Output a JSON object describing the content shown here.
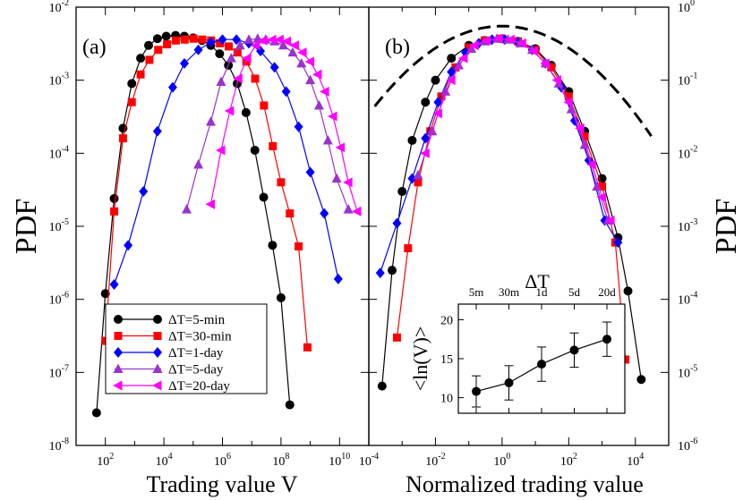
{
  "figure": {
    "ylabel_left": "PDF",
    "ylabel_right": "PDF"
  },
  "chart_data": [
    {
      "type": "line",
      "panel_label": "(a)",
      "xlabel": "Trading value V",
      "ylabel": "PDF",
      "xscale": "log",
      "yscale": "log",
      "xlim": [
        10,
        100000000000
      ],
      "ylim": [
        1e-08,
        0.01
      ],
      "x_ticks": [
        {
          "b": "10",
          "e": "2",
          "v": 100
        },
        {
          "b": "10",
          "e": "4",
          "v": 10000
        },
        {
          "b": "10",
          "e": "6",
          "v": 1000000
        },
        {
          "b": "10",
          "e": "8",
          "v": 100000000
        },
        {
          "b": "10",
          "e": "10",
          "v": 10000000000
        }
      ],
      "y_ticks": [
        {
          "b": "10",
          "e": "-8",
          "v": 1e-08
        },
        {
          "b": "10",
          "e": "-7",
          "v": 1e-07
        },
        {
          "b": "10",
          "e": "-6",
          "v": 1e-06
        },
        {
          "b": "10",
          "e": "-5",
          "v": 1e-05
        },
        {
          "b": "10",
          "e": "-4",
          "v": 0.0001
        },
        {
          "b": "10",
          "e": "-3",
          "v": 0.001
        },
        {
          "b": "10",
          "e": "-2",
          "v": 0.01
        }
      ],
      "legend_position": "bottom-left",
      "series": [
        {
          "name": "ΔT=5-min",
          "color": "#000000",
          "marker": "circle",
          "points": [
            [
              50,
              2.8e-08
            ],
            [
              100,
              1.2e-06
            ],
            [
              200,
              2.4e-05
            ],
            [
              400,
              0.00022
            ],
            [
              800,
              0.0009
            ],
            [
              1600,
              0.002
            ],
            [
              3000,
              0.003
            ],
            [
              6000,
              0.0037
            ],
            [
              12000,
              0.004
            ],
            [
              25000,
              0.0041
            ],
            [
              50000,
              0.004
            ],
            [
              100000,
              0.0038
            ],
            [
              200000,
              0.0035
            ],
            [
              400000,
              0.003
            ],
            [
              800000,
              0.0023
            ],
            [
              1600000,
              0.0016
            ],
            [
              3200000,
              0.0009
            ],
            [
              6400000,
              0.00036
            ],
            [
              12800000,
              0.00011
            ],
            [
              25600000,
              2.5e-05
            ],
            [
              51200000,
              5.5e-06
            ],
            [
              100000000,
              1.05e-06
            ],
            [
              200000000,
              3.6e-08
            ]
          ]
        },
        {
          "name": "ΔT=30-min",
          "color": "#ff0000",
          "marker": "square",
          "points": [
            [
              100,
              2.7e-07
            ],
            [
              200,
              1.6e-05
            ],
            [
              400,
              0.00016
            ],
            [
              800,
              0.0005
            ],
            [
              1600,
              0.0012
            ],
            [
              3200,
              0.0019
            ],
            [
              6400,
              0.0026
            ],
            [
              12800,
              0.0031
            ],
            [
              25600,
              0.0035
            ],
            [
              51200,
              0.0036
            ],
            [
              102400,
              0.0037
            ],
            [
              204800,
              0.0036
            ],
            [
              409600,
              0.0035
            ],
            [
              819200,
              0.0032
            ],
            [
              1638400,
              0.0029
            ],
            [
              3276800,
              0.0024
            ],
            [
              6553600,
              0.0018
            ],
            [
              13107200,
              0.00105
            ],
            [
              26214400,
              0.00045
            ],
            [
              52428800,
              0.000125
            ],
            [
              100000000,
              4e-05
            ],
            [
              200000000,
              1.5e-05
            ],
            [
              400000000,
              5.3e-06
            ],
            [
              800000000,
              2.2e-07
            ]
          ]
        },
        {
          "name": "ΔT=1-day",
          "color": "#0000ff",
          "marker": "diamond",
          "points": [
            [
              200,
              1.6e-06
            ],
            [
              600,
              5.5e-06
            ],
            [
              2000,
              3e-05
            ],
            [
              6000,
              0.0002
            ],
            [
              20000,
              0.0008
            ],
            [
              50000,
              0.0017
            ],
            [
              150000,
              0.0026
            ],
            [
              400000,
              0.0033
            ],
            [
              1000000,
              0.0036
            ],
            [
              3000000,
              0.0036
            ],
            [
              8000000,
              0.0032
            ],
            [
              20000000,
              0.0025
            ],
            [
              60000000,
              0.0015
            ],
            [
              150000000,
              0.0007
            ],
            [
              400000000,
              0.00023
            ],
            [
              1000000000,
              5.5e-05
            ],
            [
              3000000000,
              1.5e-05
            ],
            [
              9000000000,
              1.9e-06
            ]
          ]
        },
        {
          "name": "ΔT=5-day",
          "color": "#9933cc",
          "marker": "triangle-up",
          "points": [
            [
              60000,
              1.7e-05
            ],
            [
              150000,
              7e-05
            ],
            [
              400000,
              0.00027
            ],
            [
              900000,
              0.00095
            ],
            [
              2000000,
              0.002
            ],
            [
              4000000,
              0.003
            ],
            [
              8000000,
              0.0036
            ],
            [
              16000000,
              0.0037
            ],
            [
              30000000,
              0.0036
            ],
            [
              60000000,
              0.0034
            ],
            [
              120000000,
              0.003
            ],
            [
              250000000,
              0.0024
            ],
            [
              500000000,
              0.0017
            ],
            [
              1000000000,
              0.001
            ],
            [
              2000000000,
              0.00045
            ],
            [
              4000000000,
              0.00015
            ],
            [
              8000000000,
              4.5e-05
            ],
            [
              20000000000,
              1.7e-05
            ]
          ]
        },
        {
          "name": "ΔT=20-day",
          "color": "#ff00ff",
          "marker": "triangle-left",
          "points": [
            [
              400000,
              2e-05
            ],
            [
              900000,
              0.00011
            ],
            [
              1800000,
              0.00038
            ],
            [
              3500000,
              0.00105
            ],
            [
              7000000,
              0.002
            ],
            [
              14000000,
              0.003
            ],
            [
              25000000,
              0.0035
            ],
            [
              50000000,
              0.0036
            ],
            [
              90000000,
              0.0036
            ],
            [
              160000000,
              0.0034
            ],
            [
              300000000,
              0.003
            ],
            [
              550000000,
              0.0024
            ],
            [
              1000000000,
              0.0018
            ],
            [
              1800000000,
              0.0012
            ],
            [
              3200000000,
              0.0007
            ],
            [
              6000000000,
              0.00032
            ],
            [
              11000000000,
              0.00012
            ],
            [
              20000000000,
              4e-05
            ],
            [
              40000000000,
              1.6e-05
            ]
          ]
        }
      ]
    },
    {
      "type": "line",
      "panel_label": "(b)",
      "xlabel": "Normalized trading value",
      "ylabel": "PDF",
      "xscale": "log",
      "yscale": "log",
      "xlim": [
        0.0001,
        100000
      ],
      "ylim": [
        1e-06,
        1
      ],
      "x_ticks": [
        {
          "b": "10",
          "e": "-4",
          "v": 0.0001
        },
        {
          "b": "10",
          "e": "-2",
          "v": 0.01
        },
        {
          "b": "10",
          "e": "0",
          "v": 1
        },
        {
          "b": "10",
          "e": "2",
          "v": 100
        },
        {
          "b": "10",
          "e": "4",
          "v": 10000
        }
      ],
      "y_ticks": [
        {
          "b": "10",
          "e": "-6",
          "v": 1e-06
        },
        {
          "b": "10",
          "e": "-5",
          "v": 1e-05
        },
        {
          "b": "10",
          "e": "-4",
          "v": 0.0001
        },
        {
          "b": "10",
          "e": "-3",
          "v": 0.001
        },
        {
          "b": "10",
          "e": "-2",
          "v": 0.01
        },
        {
          "b": "10",
          "e": "-1",
          "v": 0.1
        },
        {
          "b": "10",
          "e": "0",
          "v": 1
        }
      ],
      "series": [
        {
          "name": "ΔT=5-min",
          "color": "#000000",
          "marker": "circle",
          "points": [
            [
              0.00025,
              6.5e-06
            ],
            [
              0.0005,
              0.00025
            ],
            [
              0.001,
              0.003
            ],
            [
              0.002,
              0.015
            ],
            [
              0.005,
              0.05
            ],
            [
              0.01,
              0.1
            ],
            [
              0.03,
              0.2
            ],
            [
              0.1,
              0.3
            ],
            [
              0.3,
              0.35
            ],
            [
              1,
              0.37
            ],
            [
              3,
              0.34
            ],
            [
              10,
              0.27
            ],
            [
              30,
              0.16
            ],
            [
              100,
              0.07
            ],
            [
              300,
              0.02
            ],
            [
              1000,
              0.0045
            ],
            [
              3000,
              0.0007
            ],
            [
              6000,
              0.00013
            ],
            [
              15000,
              8e-06
            ]
          ]
        },
        {
          "name": "ΔT=30-min",
          "color": "#ff0000",
          "marker": "square",
          "points": [
            [
              0.0007,
              3e-05
            ],
            [
              0.0015,
              0.0005
            ],
            [
              0.003,
              0.004
            ],
            [
              0.007,
              0.02
            ],
            [
              0.015,
              0.06
            ],
            [
              0.04,
              0.15
            ],
            [
              0.1,
              0.28
            ],
            [
              0.3,
              0.35
            ],
            [
              1,
              0.37
            ],
            [
              3,
              0.34
            ],
            [
              10,
              0.26
            ],
            [
              30,
              0.15
            ],
            [
              100,
              0.06
            ],
            [
              300,
              0.017
            ],
            [
              1000,
              0.0035
            ],
            [
              2500,
              0.0006
            ],
            [
              5000,
              1.5e-05
            ]
          ]
        },
        {
          "name": "ΔT=1-day",
          "color": "#0000ff",
          "marker": "diamond",
          "points": [
            [
              0.00022,
              0.00023
            ],
            [
              0.0007,
              0.0011
            ],
            [
              0.002,
              0.0045
            ],
            [
              0.005,
              0.016
            ],
            [
              0.012,
              0.05
            ],
            [
              0.03,
              0.13
            ],
            [
              0.08,
              0.24
            ],
            [
              0.2,
              0.32
            ],
            [
              0.5,
              0.36
            ],
            [
              1.2,
              0.36
            ],
            [
              3,
              0.33
            ],
            [
              8,
              0.26
            ],
            [
              20,
              0.17
            ],
            [
              60,
              0.08
            ],
            [
              150,
              0.028
            ],
            [
              400,
              0.008
            ],
            [
              1200,
              0.0012
            ],
            [
              3000,
              0.0006
            ]
          ]
        },
        {
          "name": "ΔT=5-day",
          "color": "#9933cc",
          "marker": "triangle-up",
          "points": [
            [
              0.003,
              0.005
            ],
            [
              0.008,
              0.02
            ],
            [
              0.02,
              0.07
            ],
            [
              0.05,
              0.16
            ],
            [
              0.12,
              0.27
            ],
            [
              0.3,
              0.34
            ],
            [
              0.7,
              0.37
            ],
            [
              1.5,
              0.36
            ],
            [
              3.5,
              0.32
            ],
            [
              8,
              0.26
            ],
            [
              20,
              0.17
            ],
            [
              50,
              0.09
            ],
            [
              120,
              0.04
            ],
            [
              300,
              0.013
            ],
            [
              700,
              0.0035
            ],
            [
              1500,
              0.0012
            ]
          ]
        },
        {
          "name": "ΔT=20-day",
          "color": "#ff00ff",
          "marker": "triangle-left",
          "points": [
            [
              0.005,
              0.01
            ],
            [
              0.012,
              0.035
            ],
            [
              0.03,
              0.1
            ],
            [
              0.07,
              0.2
            ],
            [
              0.15,
              0.3
            ],
            [
              0.35,
              0.35
            ],
            [
              0.8,
              0.37
            ],
            [
              1.8,
              0.36
            ],
            [
              4,
              0.32
            ],
            [
              9,
              0.25
            ],
            [
              20,
              0.17
            ],
            [
              45,
              0.1
            ],
            [
              100,
              0.05
            ],
            [
              220,
              0.022
            ],
            [
              500,
              0.007
            ],
            [
              1000,
              0.0025
            ],
            [
              1800,
              0.0012
            ]
          ]
        }
      ],
      "reference_curve": {
        "type": "log-normal",
        "style": "dashed",
        "color": "#000000",
        "peak_x": 1,
        "peak_y": 0.55,
        "sigma_decades": 1.7,
        "x_range": [
          0.00015,
          30000
        ]
      },
      "inset": {
        "type": "scatter",
        "top_label": "ΔT",
        "ylabel": "<ln(V)>",
        "ylim": [
          8,
          22
        ],
        "y_ticks": [
          10,
          15,
          20
        ],
        "top_ticks": [
          "5m",
          "30m",
          "1d",
          "5d",
          "20d"
        ],
        "points": [
          {
            "label": "5m",
            "value": 10.8,
            "error": 2.0
          },
          {
            "label": "30m",
            "value": 11.9,
            "error": 2.2
          },
          {
            "label": "1d",
            "value": 14.3,
            "error": 2.2
          },
          {
            "label": "5d",
            "value": 16.1,
            "error": 2.2
          },
          {
            "label": "20d",
            "value": 17.5,
            "error": 2.2
          }
        ]
      }
    }
  ]
}
